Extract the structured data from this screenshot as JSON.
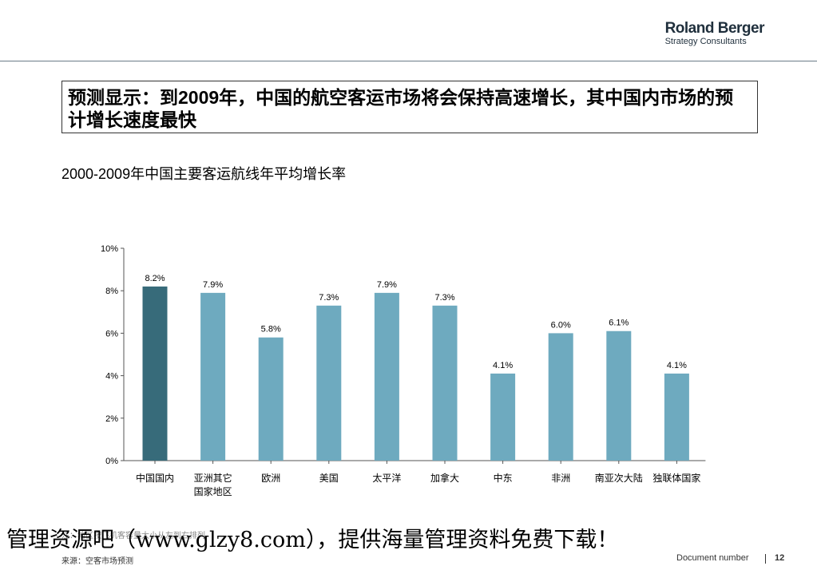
{
  "logo": {
    "brand": "Roland Berger",
    "sub": "Strategy Consultants"
  },
  "headline": "预测显示：到2009年，中国的航空客运市场将会保持高速增长，其中国内市场的预计增长速度最快",
  "subtitle": "2000-2009年中国主要客运航线年平均增长率",
  "chart_data": {
    "type": "bar",
    "categories": [
      "中国国内",
      "亚洲其它国家地区",
      "欧洲",
      "美国",
      "太平洋",
      "加拿大",
      "中东",
      "非洲",
      "南亚次大陆",
      "独联体国家"
    ],
    "category_lines": [
      [
        "中国国内"
      ],
      [
        "亚洲其它",
        "国家地区"
      ],
      [
        "欧洲"
      ],
      [
        "美国"
      ],
      [
        "太平洋"
      ],
      [
        "加拿大"
      ],
      [
        "中东"
      ],
      [
        "非洲"
      ],
      [
        "南亚次大陆"
      ],
      [
        "独联体国家"
      ]
    ],
    "values": [
      8.2,
      7.9,
      5.8,
      7.3,
      7.9,
      7.3,
      4.1,
      6.0,
      6.1,
      4.1
    ],
    "data_labels": [
      "8.2%",
      "7.9%",
      "5.8%",
      "7.3%",
      "7.9%",
      "7.3%",
      "4.1%",
      "6.0%",
      "6.1%",
      "4.1%"
    ],
    "yticks": [
      "0%",
      "2%",
      "4%",
      "6%",
      "8%",
      "10%"
    ],
    "ylim": [
      0,
      10
    ],
    "grid": false,
    "colors": {
      "highlight": "#376b7a",
      "bar": "#6eaabf"
    }
  },
  "watermark": "管理资源吧（www.glzy8.com），提供海量管理资料免费下载！",
  "note": "注：地区按飞机客容量大小从左到右排列",
  "source": "来源：空客市场预测",
  "footer": {
    "doc_label": "Document number",
    "page": "12"
  }
}
